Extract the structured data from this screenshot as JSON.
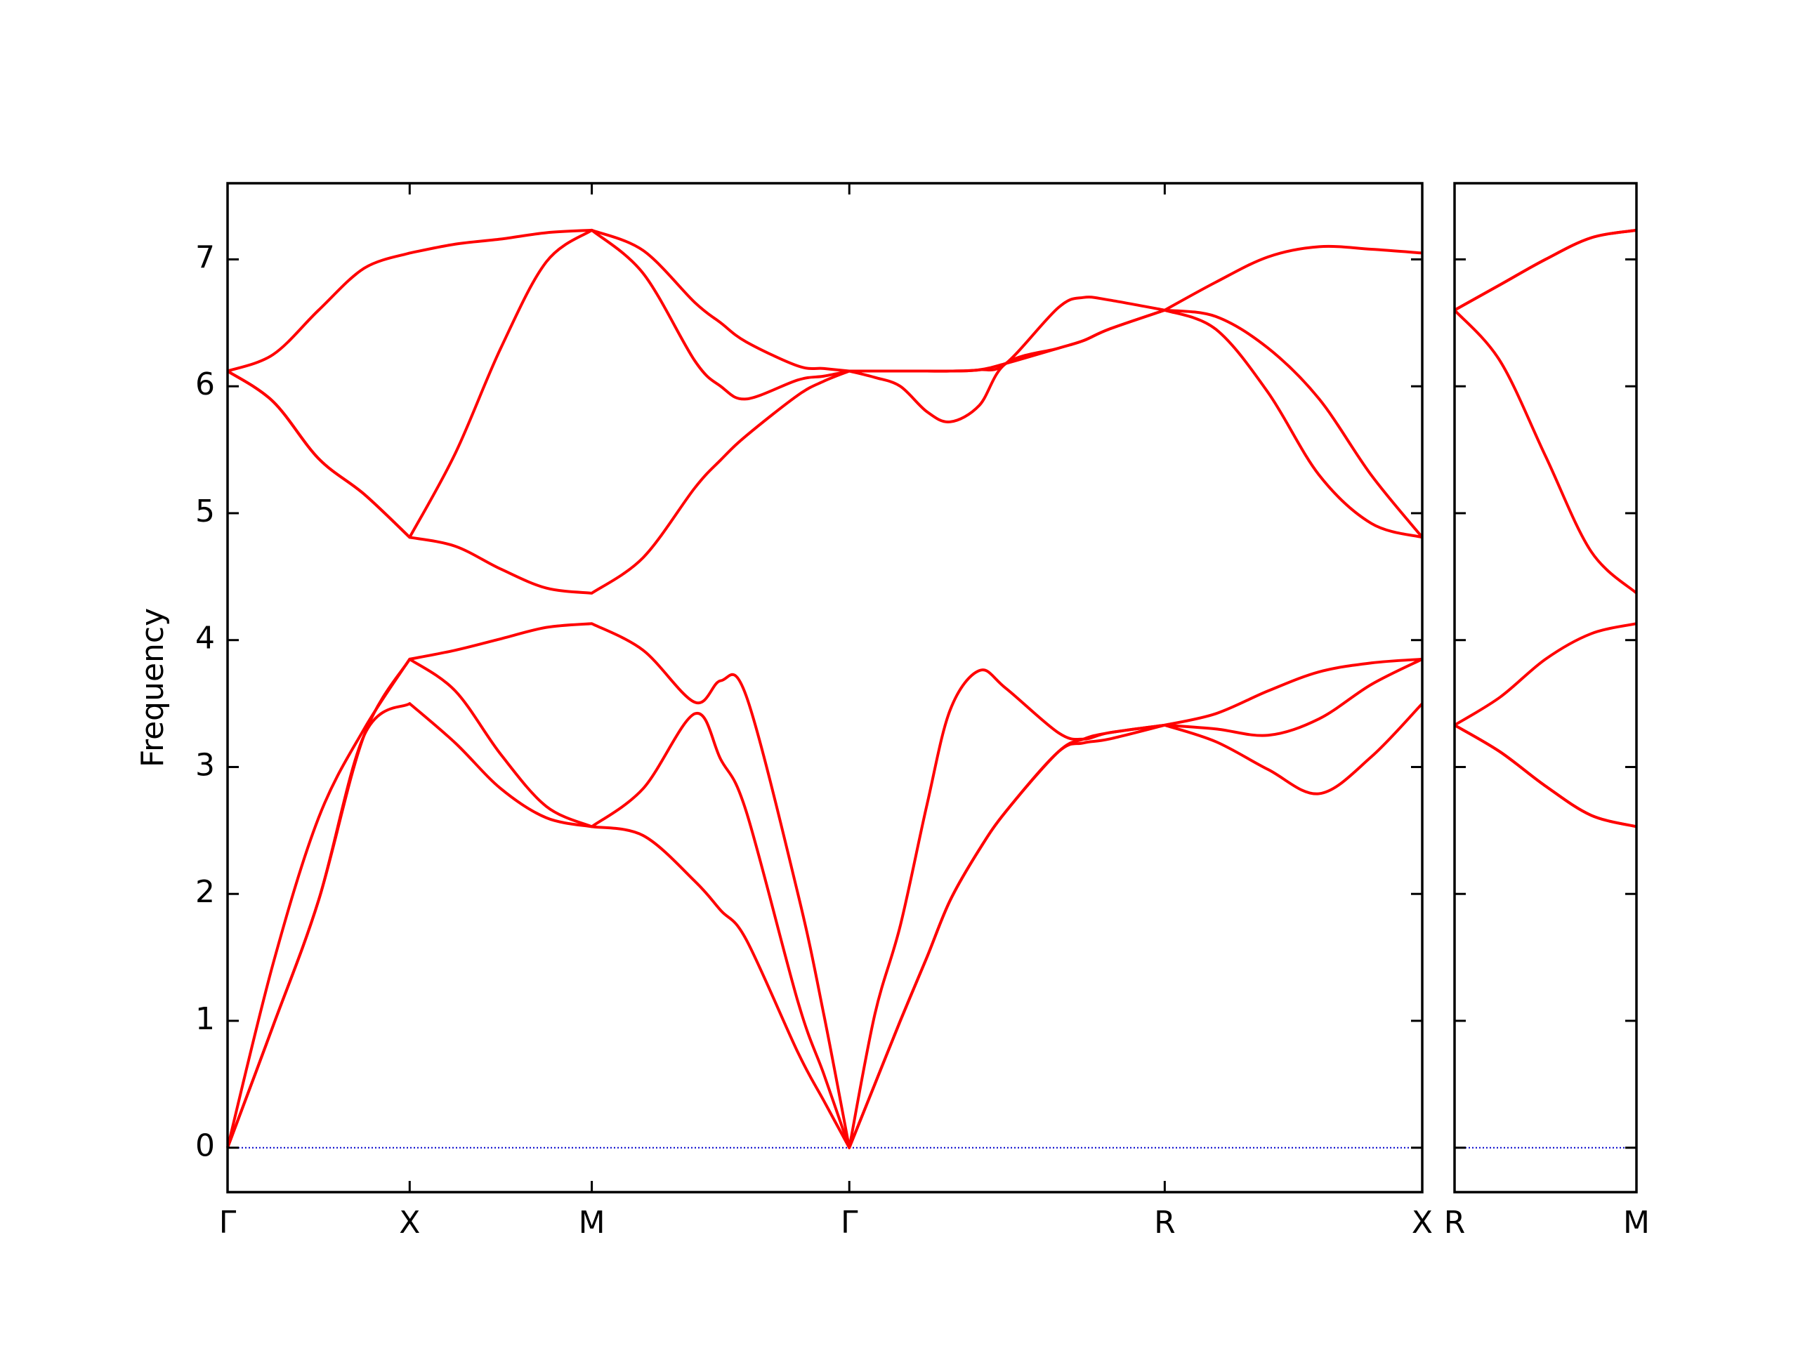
{
  "chart_data": [
    {
      "type": "line",
      "ylabel": "Frequency",
      "x": [
        0,
        0.125,
        0.25,
        0.375,
        0.5,
        0.625,
        0.75,
        0.875,
        1.0,
        1.141,
        1.283,
        1.354,
        1.424,
        1.566,
        1.637,
        1.707,
        1.777,
        1.847,
        1.92,
        1.984,
        2.064,
        2.137,
        2.281,
        2.35,
        2.42,
        2.573,
        2.713,
        2.857,
        2.997,
        3.14,
        3.28
      ],
      "series": [
        {
          "color": "#ff0000",
          "values": [
            0,
            0.96,
            1.95,
            3.25,
            3.5,
            3.19,
            2.83,
            2.6,
            2.53,
            2.46,
            2.1,
            1.87,
            1.64,
            0.75,
            0.37,
            0,
            0.5,
            1.0,
            1.5,
            1.95,
            2.35,
            2.65,
            3.12,
            3.19,
            3.22,
            3.33,
            3.2,
            2.98,
            2.79,
            3.08,
            3.5
          ]
        },
        {
          "color": "#ff0000",
          "values": [
            0,
            0.96,
            1.95,
            3.25,
            3.85,
            3.6,
            3.1,
            2.69,
            2.53,
            2.83,
            3.42,
            3.06,
            2.65,
            1.15,
            0.58,
            0,
            0.5,
            1.0,
            1.5,
            1.95,
            2.35,
            2.65,
            3.12,
            3.22,
            3.27,
            3.33,
            3.3,
            3.25,
            3.38,
            3.65,
            3.85
          ]
        },
        {
          "color": "#ff0000",
          "values": [
            0,
            1.45,
            2.6,
            3.3,
            3.85,
            3.92,
            4.01,
            4.1,
            4.13,
            3.92,
            3.51,
            3.68,
            3.56,
            2.0,
            1.05,
            0,
            1.05,
            1.75,
            2.7,
            3.45,
            3.76,
            3.62,
            3.27,
            3.22,
            3.27,
            3.33,
            3.42,
            3.6,
            3.75,
            3.82,
            3.85
          ]
        },
        {
          "color": "#ff0000",
          "values": [
            6.12,
            5.88,
            5.43,
            5.15,
            4.81,
            4.74,
            4.56,
            4.41,
            4.37,
            4.65,
            5.2,
            5.42,
            5.61,
            5.93,
            6.04,
            6.12,
            6.07,
            6.0,
            5.8,
            5.72,
            5.85,
            6.18,
            6.3,
            6.36,
            6.45,
            6.6,
            6.45,
            5.95,
            5.3,
            4.92,
            4.81
          ]
        },
        {
          "color": "#ff0000",
          "values": [
            6.12,
            5.88,
            5.43,
            5.15,
            4.81,
            5.47,
            6.3,
            6.98,
            7.23,
            6.89,
            6.2,
            6.0,
            5.9,
            6.05,
            6.08,
            6.12,
            6.12,
            6.12,
            6.12,
            6.12,
            6.13,
            6.18,
            6.3,
            6.36,
            6.45,
            6.6,
            6.55,
            6.3,
            5.9,
            5.3,
            4.81
          ]
        },
        {
          "color": "#ff0000",
          "values": [
            6.12,
            6.25,
            6.6,
            6.93,
            7.05,
            7.12,
            7.16,
            7.21,
            7.23,
            7.07,
            6.66,
            6.5,
            6.35,
            6.16,
            6.14,
            6.12,
            6.12,
            6.12,
            6.12,
            6.12,
            6.13,
            6.18,
            6.62,
            6.7,
            6.68,
            6.6,
            6.82,
            7.02,
            7.1,
            7.08,
            7.05
          ]
        }
      ],
      "xlim": [
        0,
        3.28
      ],
      "xticks": [
        {
          "value": 0,
          "label": "Γ"
        },
        {
          "value": 0.5,
          "label": "X"
        },
        {
          "value": 1.0,
          "label": "M"
        },
        {
          "value": 1.707,
          "label": "Γ"
        },
        {
          "value": 2.573,
          "label": "R"
        },
        {
          "value": 3.28,
          "label": "X"
        }
      ],
      "ylim": [
        -0.35,
        7.6
      ],
      "yticks": [
        0,
        1,
        2,
        3,
        4,
        5,
        6,
        7
      ],
      "hline": 0,
      "hline_color": "#0000cc"
    },
    {
      "type": "line",
      "x": [
        0,
        0.125,
        0.25,
        0.375,
        0.5
      ],
      "series": [
        {
          "color": "#ff0000",
          "values": [
            3.33,
            3.12,
            2.85,
            2.62,
            2.53
          ]
        },
        {
          "color": "#ff0000",
          "values": [
            3.33,
            3.12,
            2.85,
            2.62,
            2.53
          ]
        },
        {
          "color": "#ff0000",
          "values": [
            3.33,
            3.55,
            3.85,
            4.05,
            4.13
          ]
        },
        {
          "color": "#ff0000",
          "values": [
            6.6,
            6.2,
            5.45,
            4.7,
            4.37
          ]
        },
        {
          "color": "#ff0000",
          "values": [
            6.6,
            6.8,
            7.0,
            7.17,
            7.23
          ]
        },
        {
          "color": "#ff0000",
          "values": [
            6.6,
            6.8,
            7.0,
            7.17,
            7.23
          ]
        }
      ],
      "xlim": [
        0,
        0.5
      ],
      "xticks": [
        {
          "value": 0,
          "label": "R"
        },
        {
          "value": 0.5,
          "label": "M"
        }
      ],
      "ylim": [
        -0.35,
        7.6
      ],
      "yticks": [
        0,
        1,
        2,
        3,
        4,
        5,
        6,
        7
      ],
      "hline": 0,
      "hline_color": "#0000cc"
    }
  ]
}
